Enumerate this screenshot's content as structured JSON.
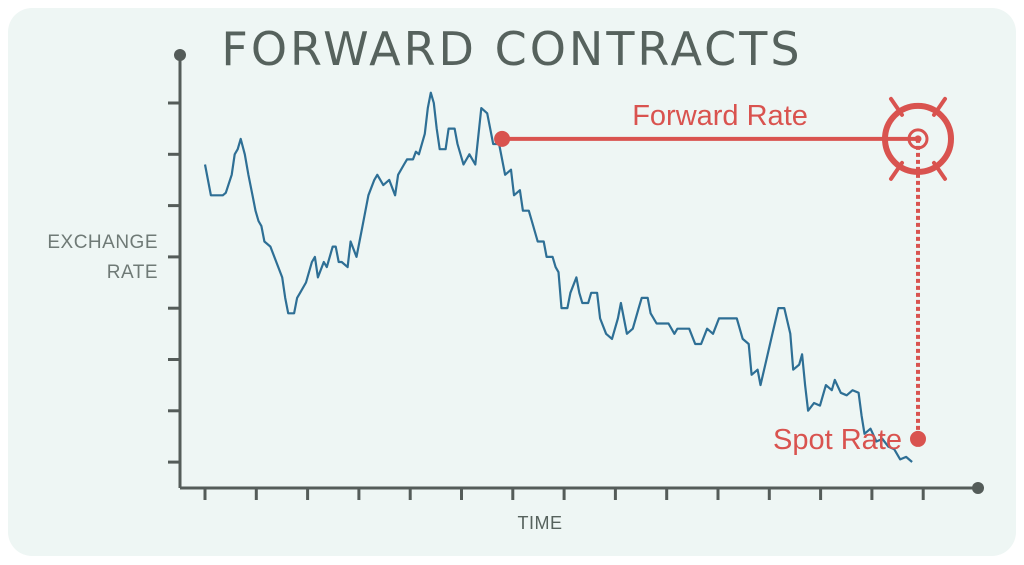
{
  "chart_data": {
    "type": "line",
    "title": "FORWARD CONTRACTS",
    "xlabel": "TIME",
    "ylabel_lines": [
      "EXCHANGE",
      "RATE"
    ],
    "ylim": [
      0,
      8
    ],
    "xlim": [
      0,
      15
    ],
    "x_ticks": 15,
    "y_ticks": 8,
    "y_tick_labels": "",
    "grid": false,
    "series": [
      {
        "color": "#2e6f95",
        "points": [
          [
            0.0,
            5.8
          ],
          [
            0.1,
            5.2
          ],
          [
            0.3,
            5.2
          ],
          [
            0.35,
            5.25
          ],
          [
            0.45,
            5.6
          ],
          [
            0.5,
            6.0
          ],
          [
            0.55,
            6.1
          ],
          [
            0.6,
            6.3
          ],
          [
            0.67,
            6.0
          ],
          [
            0.73,
            5.6
          ],
          [
            0.8,
            5.2
          ],
          [
            0.85,
            4.9
          ],
          [
            0.9,
            4.7
          ],
          [
            0.95,
            4.6
          ],
          [
            1.0,
            4.3
          ],
          [
            1.1,
            4.2
          ],
          [
            1.2,
            3.9
          ],
          [
            1.3,
            3.6
          ],
          [
            1.35,
            3.2
          ],
          [
            1.4,
            2.9
          ],
          [
            1.5,
            2.9
          ],
          [
            1.55,
            3.2
          ],
          [
            1.6,
            3.3
          ],
          [
            1.7,
            3.5
          ],
          [
            1.8,
            3.9
          ],
          [
            1.85,
            4.0
          ],
          [
            1.9,
            3.6
          ],
          [
            2.0,
            3.9
          ],
          [
            2.05,
            3.8
          ],
          [
            2.15,
            4.2
          ],
          [
            2.2,
            4.2
          ],
          [
            2.25,
            3.9
          ],
          [
            2.3,
            3.9
          ],
          [
            2.4,
            3.8
          ],
          [
            2.45,
            4.3
          ],
          [
            2.55,
            4.0
          ],
          [
            2.6,
            4.3
          ],
          [
            2.65,
            4.6
          ],
          [
            2.75,
            5.2
          ],
          [
            2.85,
            5.5
          ],
          [
            2.9,
            5.6
          ],
          [
            3.0,
            5.4
          ],
          [
            3.1,
            5.5
          ],
          [
            3.2,
            5.2
          ],
          [
            3.25,
            5.6
          ],
          [
            3.35,
            5.8
          ],
          [
            3.4,
            5.9
          ],
          [
            3.5,
            5.9
          ],
          [
            3.55,
            6.05
          ],
          [
            3.6,
            6.0
          ],
          [
            3.7,
            6.4
          ],
          [
            3.75,
            6.9
          ],
          [
            3.8,
            7.2
          ],
          [
            3.85,
            7.0
          ],
          [
            3.9,
            6.5
          ],
          [
            3.95,
            6.1
          ],
          [
            4.05,
            6.1
          ],
          [
            4.1,
            6.5
          ],
          [
            4.2,
            6.5
          ],
          [
            4.25,
            6.2
          ],
          [
            4.35,
            5.8
          ],
          [
            4.45,
            6.0
          ],
          [
            4.55,
            5.8
          ],
          [
            4.65,
            6.9
          ],
          [
            4.75,
            6.8
          ],
          [
            4.85,
            6.2
          ],
          [
            4.95,
            6.2
          ],
          [
            5.05,
            5.6
          ],
          [
            5.15,
            5.7
          ],
          [
            5.2,
            5.2
          ],
          [
            5.3,
            5.3
          ],
          [
            5.35,
            4.9
          ],
          [
            5.45,
            4.9
          ],
          [
            5.5,
            4.7
          ],
          [
            5.6,
            4.3
          ],
          [
            5.7,
            4.3
          ],
          [
            5.75,
            4.0
          ],
          [
            5.85,
            4.0
          ],
          [
            5.9,
            3.8
          ],
          [
            5.95,
            3.7
          ],
          [
            6.0,
            3.0
          ],
          [
            6.1,
            3.0
          ],
          [
            6.15,
            3.3
          ],
          [
            6.25,
            3.6
          ],
          [
            6.3,
            3.3
          ],
          [
            6.35,
            3.1
          ],
          [
            6.45,
            3.1
          ],
          [
            6.5,
            3.3
          ],
          [
            6.6,
            3.3
          ],
          [
            6.65,
            2.8
          ],
          [
            6.75,
            2.5
          ],
          [
            6.85,
            2.4
          ],
          [
            6.95,
            2.8
          ],
          [
            7.0,
            3.1
          ],
          [
            7.1,
            2.5
          ],
          [
            7.2,
            2.6
          ],
          [
            7.3,
            3.0
          ],
          [
            7.35,
            3.2
          ],
          [
            7.45,
            3.2
          ],
          [
            7.5,
            2.9
          ],
          [
            7.6,
            2.7
          ],
          [
            7.7,
            2.7
          ],
          [
            7.8,
            2.7
          ],
          [
            7.9,
            2.5
          ],
          [
            7.95,
            2.6
          ],
          [
            8.05,
            2.6
          ],
          [
            8.15,
            2.6
          ],
          [
            8.25,
            2.3
          ],
          [
            8.35,
            2.3
          ],
          [
            8.45,
            2.6
          ],
          [
            8.55,
            2.5
          ],
          [
            8.65,
            2.8
          ],
          [
            8.8,
            2.8
          ],
          [
            8.95,
            2.8
          ],
          [
            9.05,
            2.4
          ],
          [
            9.15,
            2.3
          ],
          [
            9.2,
            1.7
          ],
          [
            9.3,
            1.8
          ],
          [
            9.35,
            1.5
          ],
          [
            9.45,
            2.0
          ],
          [
            9.55,
            2.5
          ],
          [
            9.65,
            3.0
          ],
          [
            9.75,
            3.0
          ],
          [
            9.85,
            2.5
          ],
          [
            9.9,
            1.8
          ],
          [
            10.0,
            1.9
          ],
          [
            10.05,
            2.1
          ],
          [
            10.1,
            1.5
          ],
          [
            10.15,
            1.0
          ],
          [
            10.25,
            1.15
          ],
          [
            10.35,
            1.1
          ],
          [
            10.45,
            1.5
          ],
          [
            10.55,
            1.4
          ],
          [
            10.6,
            1.6
          ],
          [
            10.7,
            1.35
          ],
          [
            10.8,
            1.3
          ],
          [
            10.9,
            1.4
          ],
          [
            11.0,
            1.35
          ],
          [
            11.05,
            0.9
          ],
          [
            11.1,
            0.55
          ],
          [
            11.2,
            0.65
          ],
          [
            11.3,
            0.4
          ],
          [
            11.4,
            0.45
          ],
          [
            11.5,
            0.3
          ],
          [
            11.6,
            0.25
          ],
          [
            11.7,
            0.05
          ],
          [
            11.8,
            0.1
          ],
          [
            11.9,
            0.0
          ]
        ]
      }
    ],
    "annotations": {
      "forward_rate": {
        "label": "Forward Rate",
        "start": [
          5.0,
          6.3
        ],
        "target": [
          12.0,
          6.3
        ]
      },
      "spot_rate": {
        "label": "Spot Rate",
        "point": [
          12.0,
          0.45
        ]
      }
    }
  },
  "colors": {
    "axis": "#545c59",
    "line": "#2e6f95",
    "accent": "#d9534f",
    "background": "#eef6f4"
  },
  "icons": [
    "target-icon"
  ]
}
